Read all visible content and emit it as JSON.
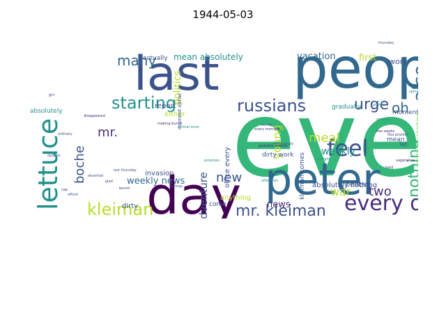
{
  "title": "1944-05-03",
  "colors": {
    "green": "#35b779",
    "dark_purple": "#440154",
    "blue": "#31688e",
    "navy": "#3b528b",
    "teal": "#21918c",
    "purple": "#472d7b",
    "yellow_green": "#b5de2b",
    "light_green": "#6ece58",
    "sea_green": "#1f9e89"
  },
  "words": [
    {
      "text": "every",
      "color": "#35b779",
      "size": 150,
      "rotate": 0
    },
    {
      "text": "people",
      "color": "#31688e",
      "size": 80,
      "rotate": 0
    },
    {
      "text": "last",
      "color": "#3b528b",
      "size": 68,
      "rotate": 0
    },
    {
      "text": "day",
      "color": "#440154",
      "size": 74,
      "rotate": 0
    },
    {
      "text": "peter",
      "color": "#31688e",
      "size": 62,
      "rotate": 0
    },
    {
      "text": "lettuce",
      "color": "#21918c",
      "size": 38,
      "rotate": -90
    },
    {
      "text": "every day",
      "color": "#472d7b",
      "size": 30,
      "rotate": 0
    },
    {
      "text": "feel",
      "color": "#3b528b",
      "size": 32,
      "rotate": 0
    },
    {
      "text": "russians",
      "color": "#3b528b",
      "size": 24,
      "rotate": 0
    },
    {
      "text": "starting",
      "color": "#21918c",
      "size": 24,
      "rotate": 0
    },
    {
      "text": "kleiman",
      "color": "#b5de2b",
      "size": 24,
      "rotate": 0
    },
    {
      "text": "mr. kleiman",
      "color": "#3b528b",
      "size": 22,
      "rotate": 0
    },
    {
      "text": "nothing",
      "color": "#35b779",
      "size": 22,
      "rotate": -90
    },
    {
      "text": "also",
      "color": "#31688e",
      "size": 26,
      "rotate": -90
    },
    {
      "text": "urge",
      "color": "#3b528b",
      "size": 22,
      "rotate": 0
    },
    {
      "text": "oh",
      "color": "#31688e",
      "size": 20,
      "rotate": 0
    },
    {
      "text": "many",
      "color": "#31688e",
      "size": 20,
      "rotate": 0
    },
    {
      "text": "meal",
      "color": "#b5de2b",
      "size": 18,
      "rotate": 0
    },
    {
      "text": "boche",
      "color": "#3b528b",
      "size": 18,
      "rotate": -90
    },
    {
      "text": "young",
      "color": "#b5de2b",
      "size": 16,
      "rotate": -90
    },
    {
      "text": "new",
      "color": "#3b528b",
      "size": 18,
      "rotate": 0
    },
    {
      "text": "two",
      "color": "#472d7b",
      "size": 18,
      "rotate": 0
    },
    {
      "text": "war",
      "color": "#b5de2b",
      "size": 16,
      "rotate": 0
    },
    {
      "text": "mr.",
      "color": "#472d7b",
      "size": 18,
      "rotate": 0
    },
    {
      "text": "adventure",
      "color": "#3b528b",
      "size": 15,
      "rotate": -90
    },
    {
      "text": "politics",
      "color": "#b5de2b",
      "size": 14,
      "rotate": -90
    },
    {
      "text": "weekly",
      "color": "#21918c",
      "size": 14,
      "rotate": 0
    },
    {
      "text": "weekly news",
      "color": "#31688e",
      "size": 13,
      "rotate": 0
    },
    {
      "text": "news",
      "color": "#472d7b",
      "size": 13,
      "rotate": 0
    },
    {
      "text": "mean absolutely",
      "color": "#21918c",
      "size": 12,
      "rotate": 0
    },
    {
      "text": "vacation",
      "color": "#31688e",
      "size": 13,
      "rotate": 0
    },
    {
      "text": "first",
      "color": "#b5de2b",
      "size": 13,
      "rotate": 0
    },
    {
      "text": "work",
      "color": "#3b528b",
      "size": 11,
      "rotate": 0
    },
    {
      "text": "report",
      "color": "#3b528b",
      "size": 10,
      "rotate": 0
    },
    {
      "text": "either",
      "color": "#b5de2b",
      "size": 10,
      "rotate": 0
    },
    {
      "text": "actually",
      "color": "#3b528b",
      "size": 9,
      "rotate": 0
    },
    {
      "text": "absolutely",
      "color": "#21918c",
      "size": 9,
      "rotate": 0
    },
    {
      "text": "gradually",
      "color": "#21918c",
      "size": 9,
      "rotate": 0
    },
    {
      "text": "moment",
      "color": "#3b528b",
      "size": 9,
      "rotate": 0
    },
    {
      "text": "invasion",
      "color": "#3b528b",
      "size": 10,
      "rotate": 0
    },
    {
      "text": "dirty",
      "color": "#3b528b",
      "size": 10,
      "rotate": 0
    },
    {
      "text": "dirty work",
      "color": "#3b528b",
      "size": 9,
      "rotate": 0
    },
    {
      "text": "absolutely nothing",
      "color": "#3b528b",
      "size": 10,
      "rotate": 0
    },
    {
      "text": "believe",
      "color": "#3b528b",
      "size": 10,
      "rotate": 0
    },
    {
      "text": "anything",
      "color": "#b5de2b",
      "size": 10,
      "rotate": 0
    },
    {
      "text": "office every",
      "color": "#3b528b",
      "size": 10,
      "rotate": -90
    },
    {
      "text": "kleiman comes",
      "color": "#3b528b",
      "size": 9,
      "rotate": -90
    },
    {
      "text": "come",
      "color": "#3b528b",
      "size": 9,
      "rotate": 0
    },
    {
      "text": "mean",
      "color": "#3b528b",
      "size": 9,
      "rotate": 0
    },
    {
      "text": "let",
      "color": "#3b528b",
      "size": 9,
      "rotate": 0
    },
    {
      "text": "also gradually",
      "color": "#21918c",
      "size": 9,
      "rotate": -90
    },
    {
      "text": "gradually starting",
      "color": "#6ece58",
      "size": 9,
      "rotate": -90
    },
    {
      "text": "moment either",
      "color": "#3b528b",
      "size": 7,
      "rotate": -90
    },
    {
      "text": "every morning",
      "color": "#472d7b",
      "size": 5,
      "rotate": 0
    },
    {
      "text": "animal lover",
      "color": "#21918c",
      "size": 5,
      "rotate": 0
    },
    {
      "text": "disappeared",
      "color": "#472d7b",
      "size": 5,
      "rotate": 0
    },
    {
      "text": "thursday",
      "color": "#3b528b",
      "size": 5,
      "rotate": 0
    },
    {
      "text": "two weeks",
      "color": "#472d7b",
      "size": 5,
      "rotate": 0
    },
    {
      "text": "family",
      "color": "#3b528b",
      "size": 5,
      "rotate": 0
    },
    {
      "text": "already",
      "color": "#21918c",
      "size": 5,
      "rotate": 0
    },
    {
      "text": "probably already",
      "color": "#472d7b",
      "size": 5,
      "rotate": 0
    },
    {
      "text": "surprisingly",
      "color": "#3b528b",
      "size": 5,
      "rotate": 0
    },
    {
      "text": "brought",
      "color": "#21918c",
      "size": 5,
      "rotate": 0
    },
    {
      "text": "vegetables",
      "color": "#472d7b",
      "size": 5,
      "rotate": 0
    },
    {
      "text": "work responsible",
      "color": "#3b528b",
      "size": 5,
      "rotate": 0
    },
    {
      "text": "spinach",
      "color": "#21918c",
      "size": 5,
      "rotate": 0
    },
    {
      "text": "ordinary",
      "color": "#3b528b",
      "size": 5,
      "rotate": 0
    },
    {
      "text": "girl",
      "color": "#472d7b",
      "size": 5,
      "rotate": 0
    },
    {
      "text": "despite",
      "color": "#3b528b",
      "size": 5,
      "rotate": 0
    },
    {
      "text": "hard",
      "color": "#472d7b",
      "size": 5,
      "rotate": 0
    },
    {
      "text": "glad",
      "color": "#3b528b",
      "size": 5,
      "rotate": 0
    },
    {
      "text": "potatoes",
      "color": "#21918c",
      "size": 5,
      "rotate": 0
    },
    {
      "text": "last thursday",
      "color": "#3b528b",
      "size": 5,
      "rotate": 0
    },
    {
      "text": "making bunch",
      "color": "#472d7b",
      "size": 5,
      "rotate": 0
    },
    {
      "text": "afternoon",
      "color": "#21918c",
      "size": 5,
      "rotate": 0
    },
    {
      "text": "perhaps",
      "color": "#472d7b",
      "size": 5,
      "rotate": 0
    },
    {
      "text": "springs",
      "color": "#3b528b",
      "size": 5,
      "rotate": 0
    },
    {
      "text": "bunch",
      "color": "#472d7b",
      "size": 5,
      "rotate": 0
    },
    {
      "text": "deserted",
      "color": "#3b528b",
      "size": 5,
      "rotate": 0
    },
    {
      "text": "flea powder",
      "color": "#3b528b",
      "size": 5,
      "rotate": 0
    },
    {
      "text": "cap",
      "color": "#472d7b",
      "size": 5,
      "rotate": 0
    },
    {
      "text": "afford",
      "color": "#3b528b",
      "size": 5,
      "rotate": 0
    },
    {
      "text": "powder",
      "color": "#21918c",
      "size": 5,
      "rotate": 0
    }
  ]
}
